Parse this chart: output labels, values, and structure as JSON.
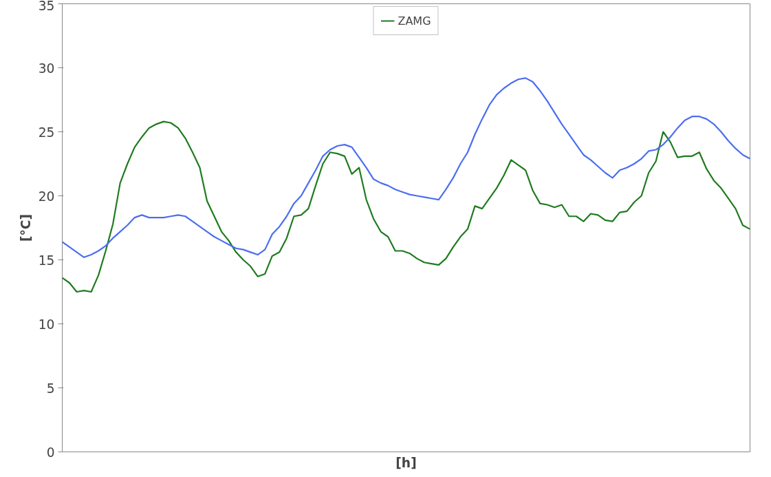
{
  "chart_data": {
    "type": "line",
    "xlabel": "[h]",
    "ylabel": "[°C]",
    "categories": [
      null,
      null,
      null,
      null,
      null,
      null,
      null,
      null,
      null,
      null,
      null,
      null,
      null,
      null,
      null,
      null,
      null,
      null,
      null,
      null,
      null,
      null,
      null,
      null,
      null,
      null,
      null,
      null,
      null,
      null,
      null,
      null,
      null,
      null,
      null,
      null,
      null,
      null,
      null,
      null,
      null,
      null,
      null,
      null,
      null,
      null,
      null,
      null,
      null,
      null,
      null,
      null,
      null,
      null,
      null,
      null,
      null,
      null,
      null,
      null,
      null,
      null,
      null,
      null,
      null,
      null,
      null,
      null,
      null,
      null,
      null,
      null,
      null,
      null,
      null,
      null,
      null,
      null,
      null,
      null,
      null,
      null,
      null,
      null,
      null,
      null,
      null,
      null,
      null,
      null,
      null,
      null,
      null,
      null,
      null,
      null
    ],
    "series": [
      {
        "name": "ZAMG",
        "color": "#1e7b1e",
        "values": [
          13.6,
          13.2,
          12.5,
          12.6,
          12.5,
          13.8,
          15.7,
          17.8,
          21.0,
          22.5,
          23.8,
          24.6,
          25.3,
          25.6,
          25.8,
          25.7,
          25.3,
          24.5,
          23.4,
          22.2,
          19.6,
          18.4,
          17.2,
          16.5,
          15.6,
          15.0,
          14.5,
          13.7,
          13.9,
          15.3,
          15.6,
          16.7,
          18.4,
          18.5,
          19.0,
          20.8,
          22.5,
          23.4,
          23.3,
          23.1,
          21.7,
          22.2,
          19.7,
          18.2,
          17.2,
          16.8,
          15.7,
          15.7,
          15.5,
          15.1,
          14.8,
          14.7,
          14.6,
          15.1,
          16.0,
          16.8,
          17.4,
          19.2,
          19.0,
          19.8,
          20.6,
          21.6,
          22.8,
          22.4,
          22.0,
          20.4,
          19.4,
          19.3,
          19.1,
          19.3,
          18.4,
          18.4,
          18.0,
          18.6,
          18.5,
          18.1,
          18.0,
          18.7,
          18.8,
          19.5,
          20.0,
          21.8,
          22.7,
          25.0,
          24.2,
          23.0,
          23.1,
          23.1,
          23.4,
          22.1,
          21.2,
          20.6,
          19.8,
          19.0,
          17.7,
          17.4
        ]
      },
      {
        "color": "#4a6ef0",
        "values": [
          16.4,
          16.0,
          15.6,
          15.2,
          15.4,
          15.7,
          16.1,
          16.7,
          17.2,
          17.7,
          18.3,
          18.5,
          18.3,
          18.3,
          18.3,
          18.4,
          18.5,
          18.4,
          18.0,
          17.6,
          17.2,
          16.8,
          16.5,
          16.2,
          15.9,
          15.8,
          15.6,
          15.4,
          15.8,
          17.0,
          17.6,
          18.4,
          19.4,
          20.0,
          21.0,
          22.0,
          23.1,
          23.6,
          23.9,
          24.0,
          23.8,
          23.0,
          22.2,
          21.3,
          21.0,
          20.8,
          20.5,
          20.3,
          20.1,
          20.0,
          19.9,
          19.8,
          19.7,
          20.5,
          21.4,
          22.5,
          23.4,
          24.8,
          26.0,
          27.1,
          27.9,
          28.4,
          28.8,
          29.1,
          29.2,
          28.9,
          28.2,
          27.4,
          26.5,
          25.6,
          24.8,
          24.0,
          23.2,
          22.8,
          22.3,
          21.8,
          21.4,
          22.0,
          22.2,
          22.5,
          22.9,
          23.5,
          23.6,
          24.0,
          24.6,
          25.3,
          25.9,
          26.2,
          26.2,
          26.0,
          25.6,
          25.0,
          24.3,
          23.7,
          23.2,
          22.9
        ]
      }
    ],
    "ylim": [
      0,
      35
    ],
    "yticks": [
      0,
      5,
      10,
      15,
      20,
      25,
      30,
      35
    ],
    "grid": false,
    "legend": "top"
  }
}
